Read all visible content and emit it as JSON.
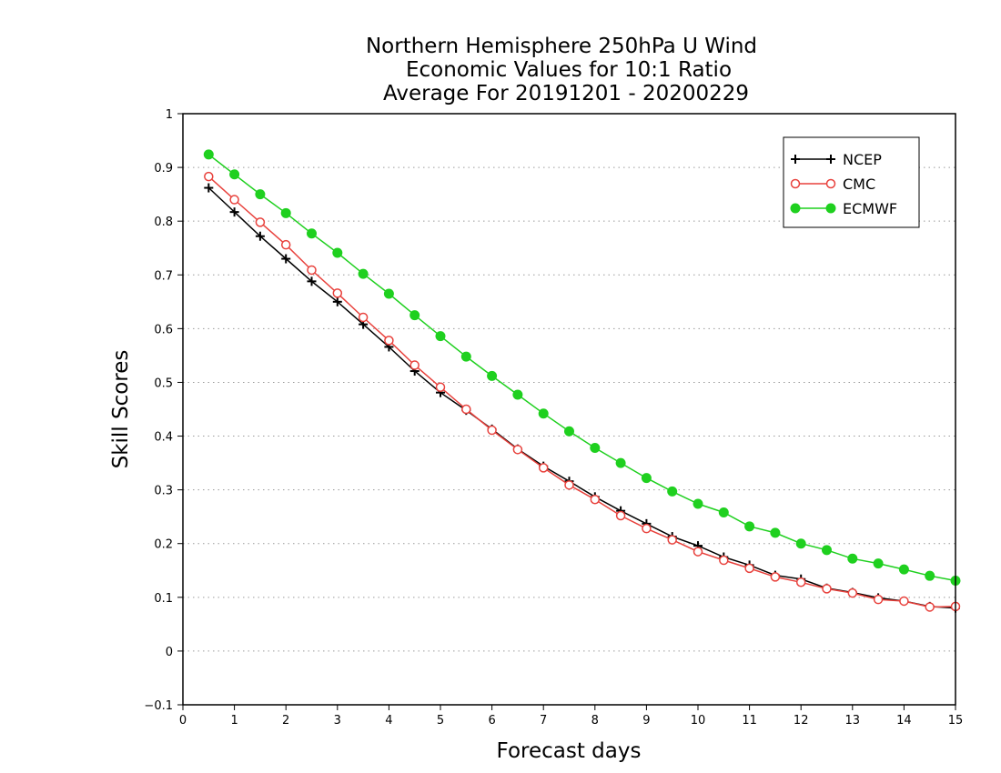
{
  "chart_data": {
    "type": "line",
    "title": "Northern Hemisphere 250hPa U Wind",
    "subtitle": [
      "Economic Values for 10:1 Ratio",
      "Average For 20191201 - 20200229"
    ],
    "xlabel": "Forecast days",
    "ylabel": "Skill Scores",
    "xlim": [
      0,
      15
    ],
    "ylim": [
      -0.1,
      1
    ],
    "x_ticks": [
      0,
      1,
      2,
      3,
      4,
      5,
      6,
      7,
      8,
      9,
      10,
      11,
      12,
      13,
      14,
      15
    ],
    "x_tick_labels": [
      "0",
      "1",
      "2",
      "3",
      "4",
      "5",
      "6",
      "7",
      "8",
      "9",
      "10",
      "11",
      "12",
      "13",
      "14",
      "15"
    ],
    "y_ticks": [
      -0.1,
      0,
      0.1,
      0.2,
      0.3,
      0.4,
      0.5,
      0.6,
      0.7,
      0.8,
      0.9,
      1
    ],
    "y_tick_labels": [
      "−0.1",
      "0",
      "0.1",
      "0.2",
      "0.3",
      "0.4",
      "0.5",
      "0.6",
      "0.7",
      "0.8",
      "0.9",
      "1"
    ],
    "grid": "horizontal dotted",
    "legend_position": "top-right",
    "x": [
      0.5,
      1,
      1.5,
      2,
      2.5,
      3,
      3.5,
      4,
      4.5,
      5,
      5.5,
      6,
      6.5,
      7,
      7.5,
      8,
      8.5,
      9,
      9.5,
      10,
      10.5,
      11,
      11.5,
      12,
      12.5,
      13,
      13.5,
      14,
      14.5,
      15
    ],
    "series": [
      {
        "name": "NCEP",
        "color": "#000000",
        "marker": "plus",
        "values": [
          0.862,
          0.817,
          0.772,
          0.73,
          0.688,
          0.65,
          0.608,
          0.566,
          0.521,
          0.481,
          0.448,
          0.413,
          0.376,
          0.344,
          0.316,
          0.287,
          0.261,
          0.237,
          0.213,
          0.196,
          0.175,
          0.16,
          0.141,
          0.134,
          0.117,
          0.109,
          0.099,
          0.093,
          0.083,
          0.08
        ]
      },
      {
        "name": "CMC",
        "color": "#e8413c",
        "marker": "open-circle",
        "values": [
          0.883,
          0.84,
          0.798,
          0.756,
          0.709,
          0.666,
          0.621,
          0.578,
          0.532,
          0.491,
          0.45,
          0.411,
          0.375,
          0.341,
          0.309,
          0.282,
          0.252,
          0.228,
          0.207,
          0.185,
          0.169,
          0.154,
          0.138,
          0.128,
          0.116,
          0.108,
          0.096,
          0.093,
          0.082,
          0.083
        ]
      },
      {
        "name": "ECMWF",
        "color": "#1fd01f",
        "marker": "filled-circle",
        "values": [
          0.924,
          0.887,
          0.85,
          0.815,
          0.777,
          0.741,
          0.702,
          0.665,
          0.625,
          0.586,
          0.548,
          0.512,
          0.477,
          0.442,
          0.409,
          0.378,
          0.35,
          0.322,
          0.297,
          0.274,
          0.258,
          0.232,
          0.22,
          0.2,
          0.188,
          0.172,
          0.163,
          0.152,
          0.14,
          0.131
        ]
      }
    ]
  }
}
